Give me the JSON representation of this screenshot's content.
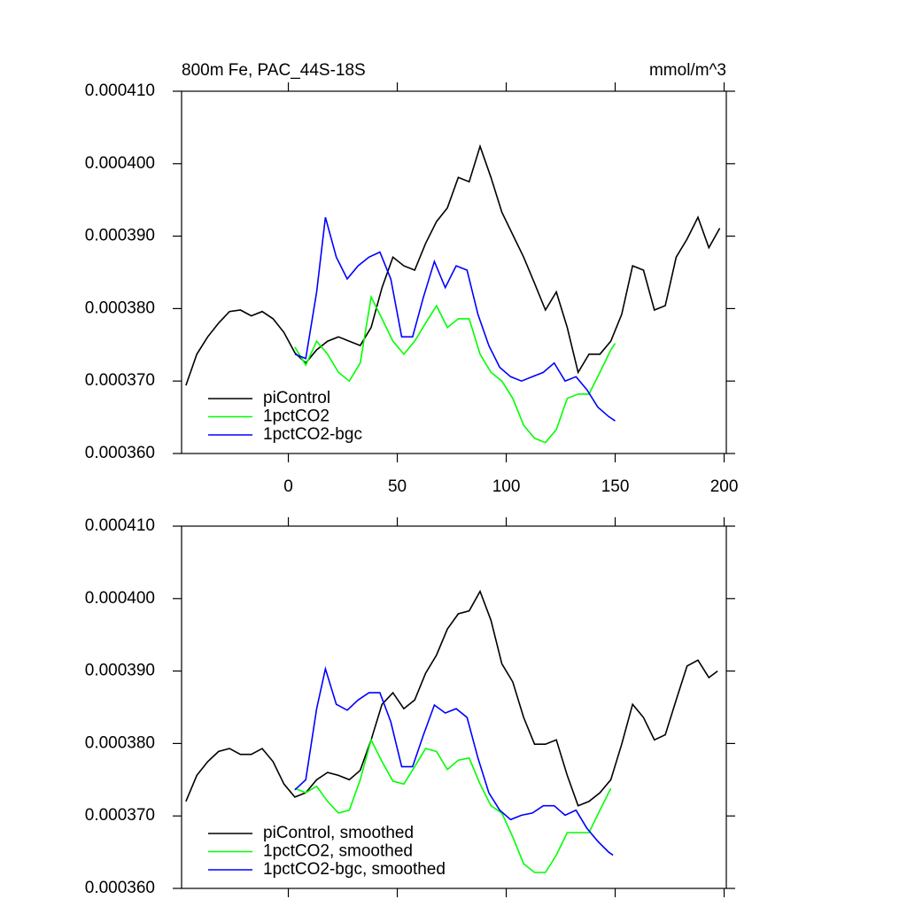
{
  "chart_data": [
    {
      "type": "line",
      "title": "800m Fe, PAC_44S-18S",
      "units": "mmol/m^3",
      "xlim": [
        -49,
        201
      ],
      "xticks": [
        0,
        50,
        100,
        150,
        200
      ],
      "xtick_labels": true,
      "ylim": [
        0.00036,
        0.00041
      ],
      "yticks": [
        {
          "value": 0.00036,
          "label": "0.000360"
        },
        {
          "value": 0.00037,
          "label": "0.000370"
        },
        {
          "value": 0.00038,
          "label": "0.000380"
        },
        {
          "value": 0.00039,
          "label": "0.000390"
        },
        {
          "value": 0.0004,
          "label": "0.000400"
        },
        {
          "value": 0.00041,
          "label": "0.000410"
        }
      ],
      "legend": "lower-left",
      "series": [
        {
          "name": "piControl",
          "color": "#000000",
          "x": [
            -47,
            -42,
            -37,
            -32,
            -27,
            -22,
            -17,
            -12,
            -7,
            -2,
            3,
            8,
            13,
            18,
            23,
            28,
            33,
            38,
            43,
            48,
            53,
            58,
            63,
            68,
            73,
            78,
            83,
            88,
            93,
            98,
            103,
            108,
            113,
            118,
            123,
            128,
            133,
            138,
            143,
            148,
            153,
            158,
            163,
            168,
            173,
            178,
            183,
            188,
            193,
            198
          ],
          "values": [
            0.0003694,
            0.0003737,
            0.0003761,
            0.000378,
            0.0003796,
            0.0003798,
            0.000379,
            0.0003796,
            0.0003786,
            0.0003767,
            0.0003739,
            0.0003725,
            0.0003743,
            0.0003755,
            0.0003761,
            0.0003755,
            0.0003749,
            0.0003774,
            0.0003829,
            0.0003871,
            0.0003859,
            0.0003853,
            0.000389,
            0.000392,
            0.0003939,
            0.0003981,
            0.0003975,
            0.0004024,
            0.0003981,
            0.0003933,
            0.0003902,
            0.0003871,
            0.0003835,
            0.0003798,
            0.0003823,
            0.0003774,
            0.0003712,
            0.0003737,
            0.0003737,
            0.0003755,
            0.0003792,
            0.0003859,
            0.0003853,
            0.0003798,
            0.0003804,
            0.0003871,
            0.0003896,
            0.0003926,
            0.0003884,
            0.0003911
          ]
        },
        {
          "name": "1pctCO2",
          "color": "#00ff00",
          "x": [
            3,
            8,
            13,
            18,
            23,
            28,
            33,
            38,
            43,
            48,
            53,
            58,
            63,
            68,
            73,
            78,
            83,
            88,
            93,
            98,
            103,
            108,
            113,
            118,
            123,
            128,
            133,
            138,
            143,
            148,
            150
          ],
          "values": [
            0.0003747,
            0.0003722,
            0.0003755,
            0.0003737,
            0.0003712,
            0.00037,
            0.0003725,
            0.0003816,
            0.0003786,
            0.0003755,
            0.0003737,
            0.0003755,
            0.000378,
            0.0003804,
            0.0003774,
            0.0003786,
            0.0003786,
            0.0003737,
            0.0003712,
            0.00037,
            0.0003676,
            0.0003639,
            0.0003621,
            0.0003615,
            0.0003633,
            0.0003676,
            0.0003682,
            0.0003682,
            0.0003712,
            0.0003743,
            0.0003752
          ]
        },
        {
          "name": "1pctCO2-bgc",
          "color": "#0000ff",
          "x": [
            3,
            8,
            13,
            17,
            22,
            27,
            32,
            37,
            42,
            47,
            52,
            57,
            62,
            67,
            72,
            77,
            82,
            87,
            92,
            97,
            102,
            107,
            112,
            117,
            122,
            127,
            132,
            137,
            142,
            147,
            150
          ],
          "values": [
            0.0003737,
            0.0003731,
            0.0003823,
            0.0003926,
            0.0003871,
            0.0003841,
            0.0003859,
            0.0003871,
            0.0003878,
            0.0003841,
            0.0003761,
            0.0003761,
            0.0003816,
            0.0003865,
            0.0003829,
            0.0003859,
            0.0003853,
            0.0003792,
            0.0003749,
            0.0003719,
            0.0003706,
            0.00037,
            0.0003706,
            0.0003712,
            0.0003725,
            0.00037,
            0.0003706,
            0.0003688,
            0.0003664,
            0.0003651,
            0.0003645
          ]
        }
      ]
    },
    {
      "type": "line",
      "xlim": [
        -49,
        201
      ],
      "xticks": [
        0,
        50,
        100,
        150,
        200
      ],
      "xtick_labels": false,
      "ylim": [
        0.00036,
        0.00041
      ],
      "yticks": [
        {
          "value": 0.00036,
          "label": "0.000360"
        },
        {
          "value": 0.00037,
          "label": "0.000370"
        },
        {
          "value": 0.00038,
          "label": "0.000380"
        },
        {
          "value": 0.00039,
          "label": "0.000390"
        },
        {
          "value": 0.0004,
          "label": "0.000400"
        },
        {
          "value": 0.00041,
          "label": "0.000410"
        }
      ],
      "legend": "lower-left",
      "series": [
        {
          "name": "piControl, smoothed",
          "color": "#000000",
          "x": [
            -47,
            -42,
            -37,
            -32,
            -27,
            -22,
            -17,
            -12,
            -7,
            -2,
            3,
            8,
            13,
            18,
            23,
            28,
            33,
            38,
            43,
            48,
            53,
            58,
            63,
            68,
            73,
            78,
            83,
            88,
            93,
            98,
            103,
            108,
            113,
            118,
            123,
            128,
            133,
            138,
            143,
            148,
            153,
            158,
            163,
            168,
            173,
            178,
            183,
            188,
            193,
            197
          ],
          "values": [
            0.000372,
            0.0003756,
            0.0003775,
            0.0003789,
            0.0003793,
            0.0003785,
            0.0003785,
            0.0003793,
            0.0003775,
            0.0003744,
            0.0003726,
            0.0003732,
            0.000375,
            0.000376,
            0.0003756,
            0.000375,
            0.0003763,
            0.0003805,
            0.0003854,
            0.000387,
            0.0003848,
            0.000386,
            0.0003897,
            0.0003922,
            0.0003958,
            0.0003979,
            0.0003983,
            0.000401,
            0.000397,
            0.000391,
            0.0003885,
            0.0003836,
            0.0003799,
            0.0003799,
            0.0003805,
            0.0003756,
            0.0003714,
            0.000372,
            0.0003732,
            0.000375,
            0.0003799,
            0.0003854,
            0.0003836,
            0.0003805,
            0.0003812,
            0.000386,
            0.0003907,
            0.0003915,
            0.0003891,
            0.00039
          ]
        },
        {
          "name": "1pctCO2, smoothed",
          "color": "#00ff00",
          "x": [
            3,
            8,
            13,
            18,
            23,
            28,
            33,
            38,
            43,
            48,
            53,
            58,
            63,
            68,
            73,
            78,
            83,
            88,
            93,
            98,
            103,
            108,
            113,
            118,
            123,
            128,
            133,
            138,
            143,
            148
          ],
          "values": [
            0.0003738,
            0.0003732,
            0.0003741,
            0.000372,
            0.0003704,
            0.0003708,
            0.000375,
            0.0003805,
            0.0003775,
            0.0003748,
            0.0003744,
            0.0003768,
            0.0003793,
            0.0003789,
            0.0003764,
            0.0003777,
            0.000378,
            0.0003744,
            0.0003714,
            0.0003704,
            0.0003671,
            0.0003634,
            0.0003622,
            0.0003622,
            0.0003646,
            0.0003677,
            0.0003677,
            0.0003677,
            0.0003708,
            0.0003738
          ]
        },
        {
          "name": "1pctCO2-bgc, smoothed",
          "color": "#0000ff",
          "x": [
            3,
            8,
            13,
            17,
            22,
            27,
            32,
            37,
            42,
            47,
            52,
            57,
            62,
            67,
            72,
            77,
            82,
            87,
            92,
            97,
            102,
            107,
            112,
            117,
            122,
            127,
            132,
            137,
            142,
            147,
            149
          ],
          "values": [
            0.0003736,
            0.000375,
            0.0003848,
            0.0003903,
            0.0003854,
            0.0003846,
            0.000386,
            0.000387,
            0.000387,
            0.000383,
            0.0003768,
            0.0003768,
            0.0003812,
            0.0003853,
            0.0003842,
            0.0003848,
            0.0003836,
            0.000378,
            0.0003732,
            0.0003708,
            0.0003695,
            0.0003701,
            0.0003704,
            0.0003714,
            0.0003714,
            0.0003701,
            0.0003708,
            0.0003683,
            0.0003665,
            0.000365,
            0.0003646
          ]
        }
      ]
    }
  ]
}
